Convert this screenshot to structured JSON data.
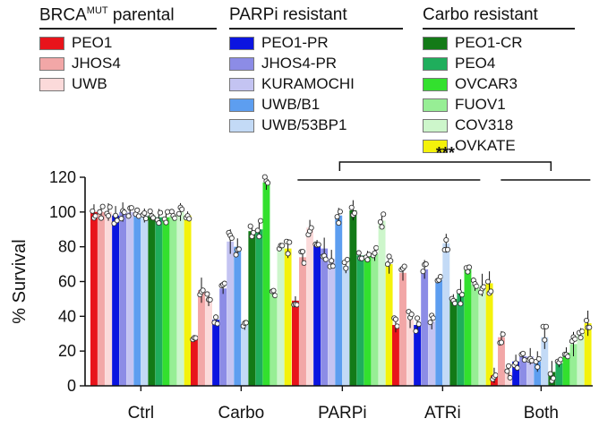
{
  "legend": {
    "groups": [
      {
        "title": "BRCA",
        "title_sup": "MUT",
        "title_suffix": " parental",
        "items": [
          {
            "label": "PEO1",
            "color": "#e8141b"
          },
          {
            "label": "JHOS4",
            "color": "#f2a7a7"
          },
          {
            "label": "UWB",
            "color": "#fbdada"
          }
        ]
      },
      {
        "title": "PARPi resistant",
        "title_sup": "",
        "title_suffix": "",
        "items": [
          {
            "label": "PEO1-PR",
            "color": "#0b14e0"
          },
          {
            "label": "JHOS4-PR",
            "color": "#8c8ce6"
          },
          {
            "label": "KURAMOCHI",
            "color": "#c4c4f2"
          },
          {
            "label": "UWB/B1",
            "color": "#5d9ef0"
          },
          {
            "label": "UWB/53BP1",
            "color": "#c3daf6"
          }
        ]
      },
      {
        "title": "Carbo resistant",
        "title_sup": "",
        "title_suffix": "",
        "items": [
          {
            "label": "PEO1-CR",
            "color": "#137a17"
          },
          {
            "label": "PEO4",
            "color": "#1fae5c"
          },
          {
            "label": "OVCAR3",
            "color": "#33e02e"
          },
          {
            "label": "FUOV1",
            "color": "#97ee95"
          },
          {
            "label": "COV318",
            "color": "#cdf6cb"
          },
          {
            "label": "OVKATE",
            "color": "#f4f20b"
          }
        ]
      }
    ]
  },
  "chart_data": {
    "type": "bar",
    "ylabel": "% Survival",
    "xlabel": "",
    "ylim": [
      0,
      120
    ],
    "yticks": [
      0,
      20,
      40,
      60,
      80,
      100,
      120
    ],
    "categories": [
      "Ctrl",
      "Carbo",
      "PARPi",
      "ATRi",
      "Both"
    ],
    "series": [
      {
        "name": "PEO1",
        "color": "#e8141b",
        "values": [
          100,
          27,
          49,
          35,
          6
        ]
      },
      {
        "name": "JHOS4",
        "color": "#f2a7a7",
        "values": [
          100,
          55,
          74,
          65,
          28
        ]
      },
      {
        "name": "UWB",
        "color": "#fbdada",
        "values": [
          100,
          50,
          91,
          38,
          8
        ]
      },
      {
        "name": "PEO1-PR",
        "color": "#0b14e0",
        "values": [
          98,
          38,
          82,
          35,
          14
        ]
      },
      {
        "name": "JHOS4-PR",
        "color": "#8c8ce6",
        "values": [
          100,
          56,
          79,
          67,
          17
        ]
      },
      {
        "name": "KURAMOCHI",
        "color": "#c4c4f2",
        "values": [
          100,
          83,
          73,
          37,
          17
        ]
      },
      {
        "name": "UWB/B1",
        "color": "#5d9ef0",
        "values": [
          99,
          80,
          98,
          61,
          14
        ]
      },
      {
        "name": "UWB/53BP1",
        "color": "#c3daf6",
        "values": [
          98,
          35,
          69,
          82,
          28
        ]
      },
      {
        "name": "PEO1-CR",
        "color": "#137a17",
        "values": [
          98,
          89,
          101,
          50,
          8
        ]
      },
      {
        "name": "PEO4",
        "color": "#1fae5c",
        "values": [
          97,
          90,
          75,
          54,
          13
        ]
      },
      {
        "name": "OVCAR3",
        "color": "#33e02e",
        "values": [
          97,
          117,
          75,
          67,
          19
        ]
      },
      {
        "name": "FUOV1",
        "color": "#97ee95",
        "values": [
          98,
          53,
          76,
          58,
          24
        ]
      },
      {
        "name": "COV318",
        "color": "#cdf6cb",
        "values": [
          100,
          80,
          95,
          58,
          30
        ]
      },
      {
        "name": "OVKATE",
        "color": "#f4f20b",
        "values": [
          98,
          79,
          70,
          59,
          36
        ]
      }
    ],
    "annotation": {
      "text": "***",
      "brackets": [
        {
          "from": "PARPi",
          "to": "Both"
        },
        {
          "from": "ATRi",
          "to": "Both"
        }
      ]
    }
  }
}
